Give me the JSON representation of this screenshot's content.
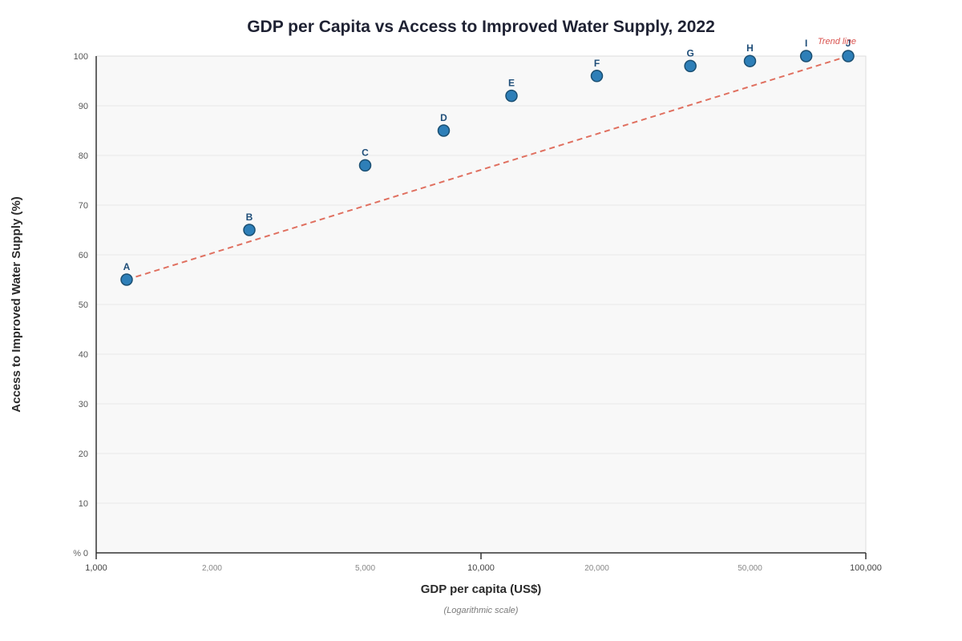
{
  "chart_data": {
    "type": "scatter",
    "title": "GDP per Capita vs Access to Improved Water Supply, 2022",
    "xlabel": "GDP per capita (US$)",
    "x_note": "(Logarithmic scale)",
    "ylabel": "Access to Improved Water Supply (%)",
    "y_unit": "%",
    "x_scale": "log",
    "xlim": [
      1000,
      100000
    ],
    "ylim": [
      0,
      100
    ],
    "grid": true,
    "x_ticks": [
      {
        "value": 1000,
        "label": "1,000",
        "major": true
      },
      {
        "value": 2000,
        "label": "2,000",
        "major": false
      },
      {
        "value": 5000,
        "label": "5,000",
        "major": false
      },
      {
        "value": 10000,
        "label": "10,000",
        "major": true
      },
      {
        "value": 20000,
        "label": "20,000",
        "major": false
      },
      {
        "value": 50000,
        "label": "50,000",
        "major": false
      },
      {
        "value": 100000,
        "label": "100,000",
        "major": true
      }
    ],
    "y_ticks": [
      0,
      10,
      20,
      30,
      40,
      50,
      60,
      70,
      80,
      90,
      100
    ],
    "points": [
      {
        "label": "A",
        "x": 1200,
        "y": 55
      },
      {
        "label": "B",
        "x": 2500,
        "y": 65
      },
      {
        "label": "C",
        "x": 5000,
        "y": 78
      },
      {
        "label": "D",
        "x": 8000,
        "y": 85
      },
      {
        "label": "E",
        "x": 12000,
        "y": 92
      },
      {
        "label": "F",
        "x": 20000,
        "y": 96
      },
      {
        "label": "G",
        "x": 35000,
        "y": 98
      },
      {
        "label": "H",
        "x": 50000,
        "y": 99
      },
      {
        "label": "I",
        "x": 70000,
        "y": 100
      },
      {
        "label": "J",
        "x": 90000,
        "y": 100
      }
    ],
    "trend_line": {
      "label": "Trend line",
      "x_start": 1200,
      "y_start": 55,
      "x_end": 90000,
      "y_end": 100
    },
    "colors": {
      "point_fill": "#2e7fb8",
      "point_stroke": "#1b4f72",
      "trend": "#e07060",
      "plot_bg": "#f8f8f8",
      "grid": "#e8e8e8"
    }
  }
}
